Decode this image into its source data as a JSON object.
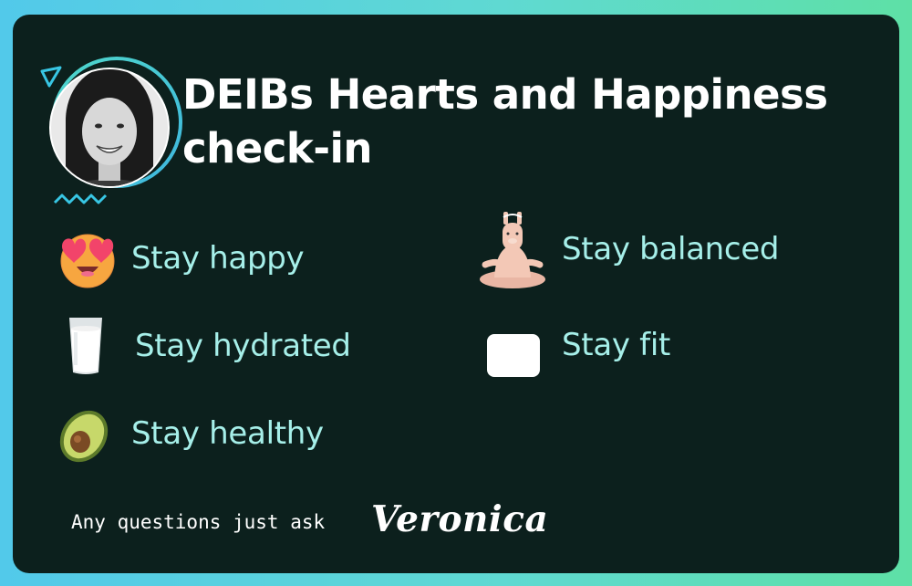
{
  "title": "DEIBs Hearts and Happiness check-in",
  "items": [
    {
      "label": "Stay happy",
      "icon": "heart-eyes-emoji-icon"
    },
    {
      "label": "Stay hydrated",
      "icon": "glass-of-milk-emoji-icon"
    },
    {
      "label": "Stay healthy",
      "icon": "avocado-emoji-icon"
    },
    {
      "label": "Stay balanced",
      "icon": "meditating-llama-icon"
    },
    {
      "label": "Stay fit",
      "icon": "blank-emoji-icon"
    }
  ],
  "footer": {
    "text": "Any questions just ask",
    "signature": "Veronica"
  },
  "colors": {
    "background": "#0c201d",
    "accent": "#a6efe9",
    "border_gradient_start": "#52c9ea",
    "border_gradient_end": "#5ee0a6"
  }
}
